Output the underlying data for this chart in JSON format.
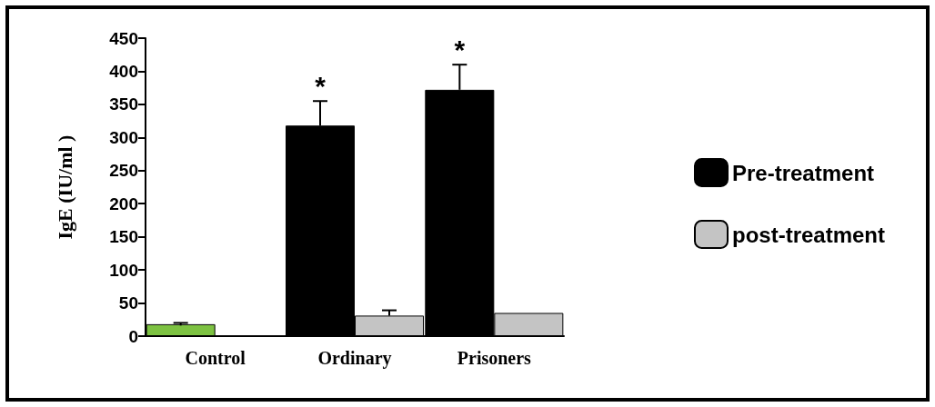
{
  "chart_data": {
    "type": "bar",
    "ylabel": "IgE (IU/ml )",
    "categories": [
      "Control",
      "Ordinary",
      "Prisoners"
    ],
    "series": [
      {
        "name": "Pre-treatment",
        "color": "#000000",
        "colors": [
          "#7dc242",
          "#000000",
          "#000000"
        ],
        "values": [
          18,
          318,
          372
        ],
        "errors": [
          2,
          [
            318,
            355
          ],
          [
            372,
            410
          ]
        ]
      },
      {
        "name": "post-treatment",
        "color": "#c4c4c4",
        "values": [
          null,
          31,
          35
        ],
        "errors": [
          null,
          [
            31,
            39
          ],
          null
        ]
      }
    ],
    "ylim": [
      0,
      450
    ],
    "yticks": [
      0,
      50,
      100,
      150,
      200,
      250,
      300,
      350,
      400,
      450
    ],
    "annotations": [
      "*",
      "*"
    ],
    "grid": false,
    "legend": "right"
  }
}
